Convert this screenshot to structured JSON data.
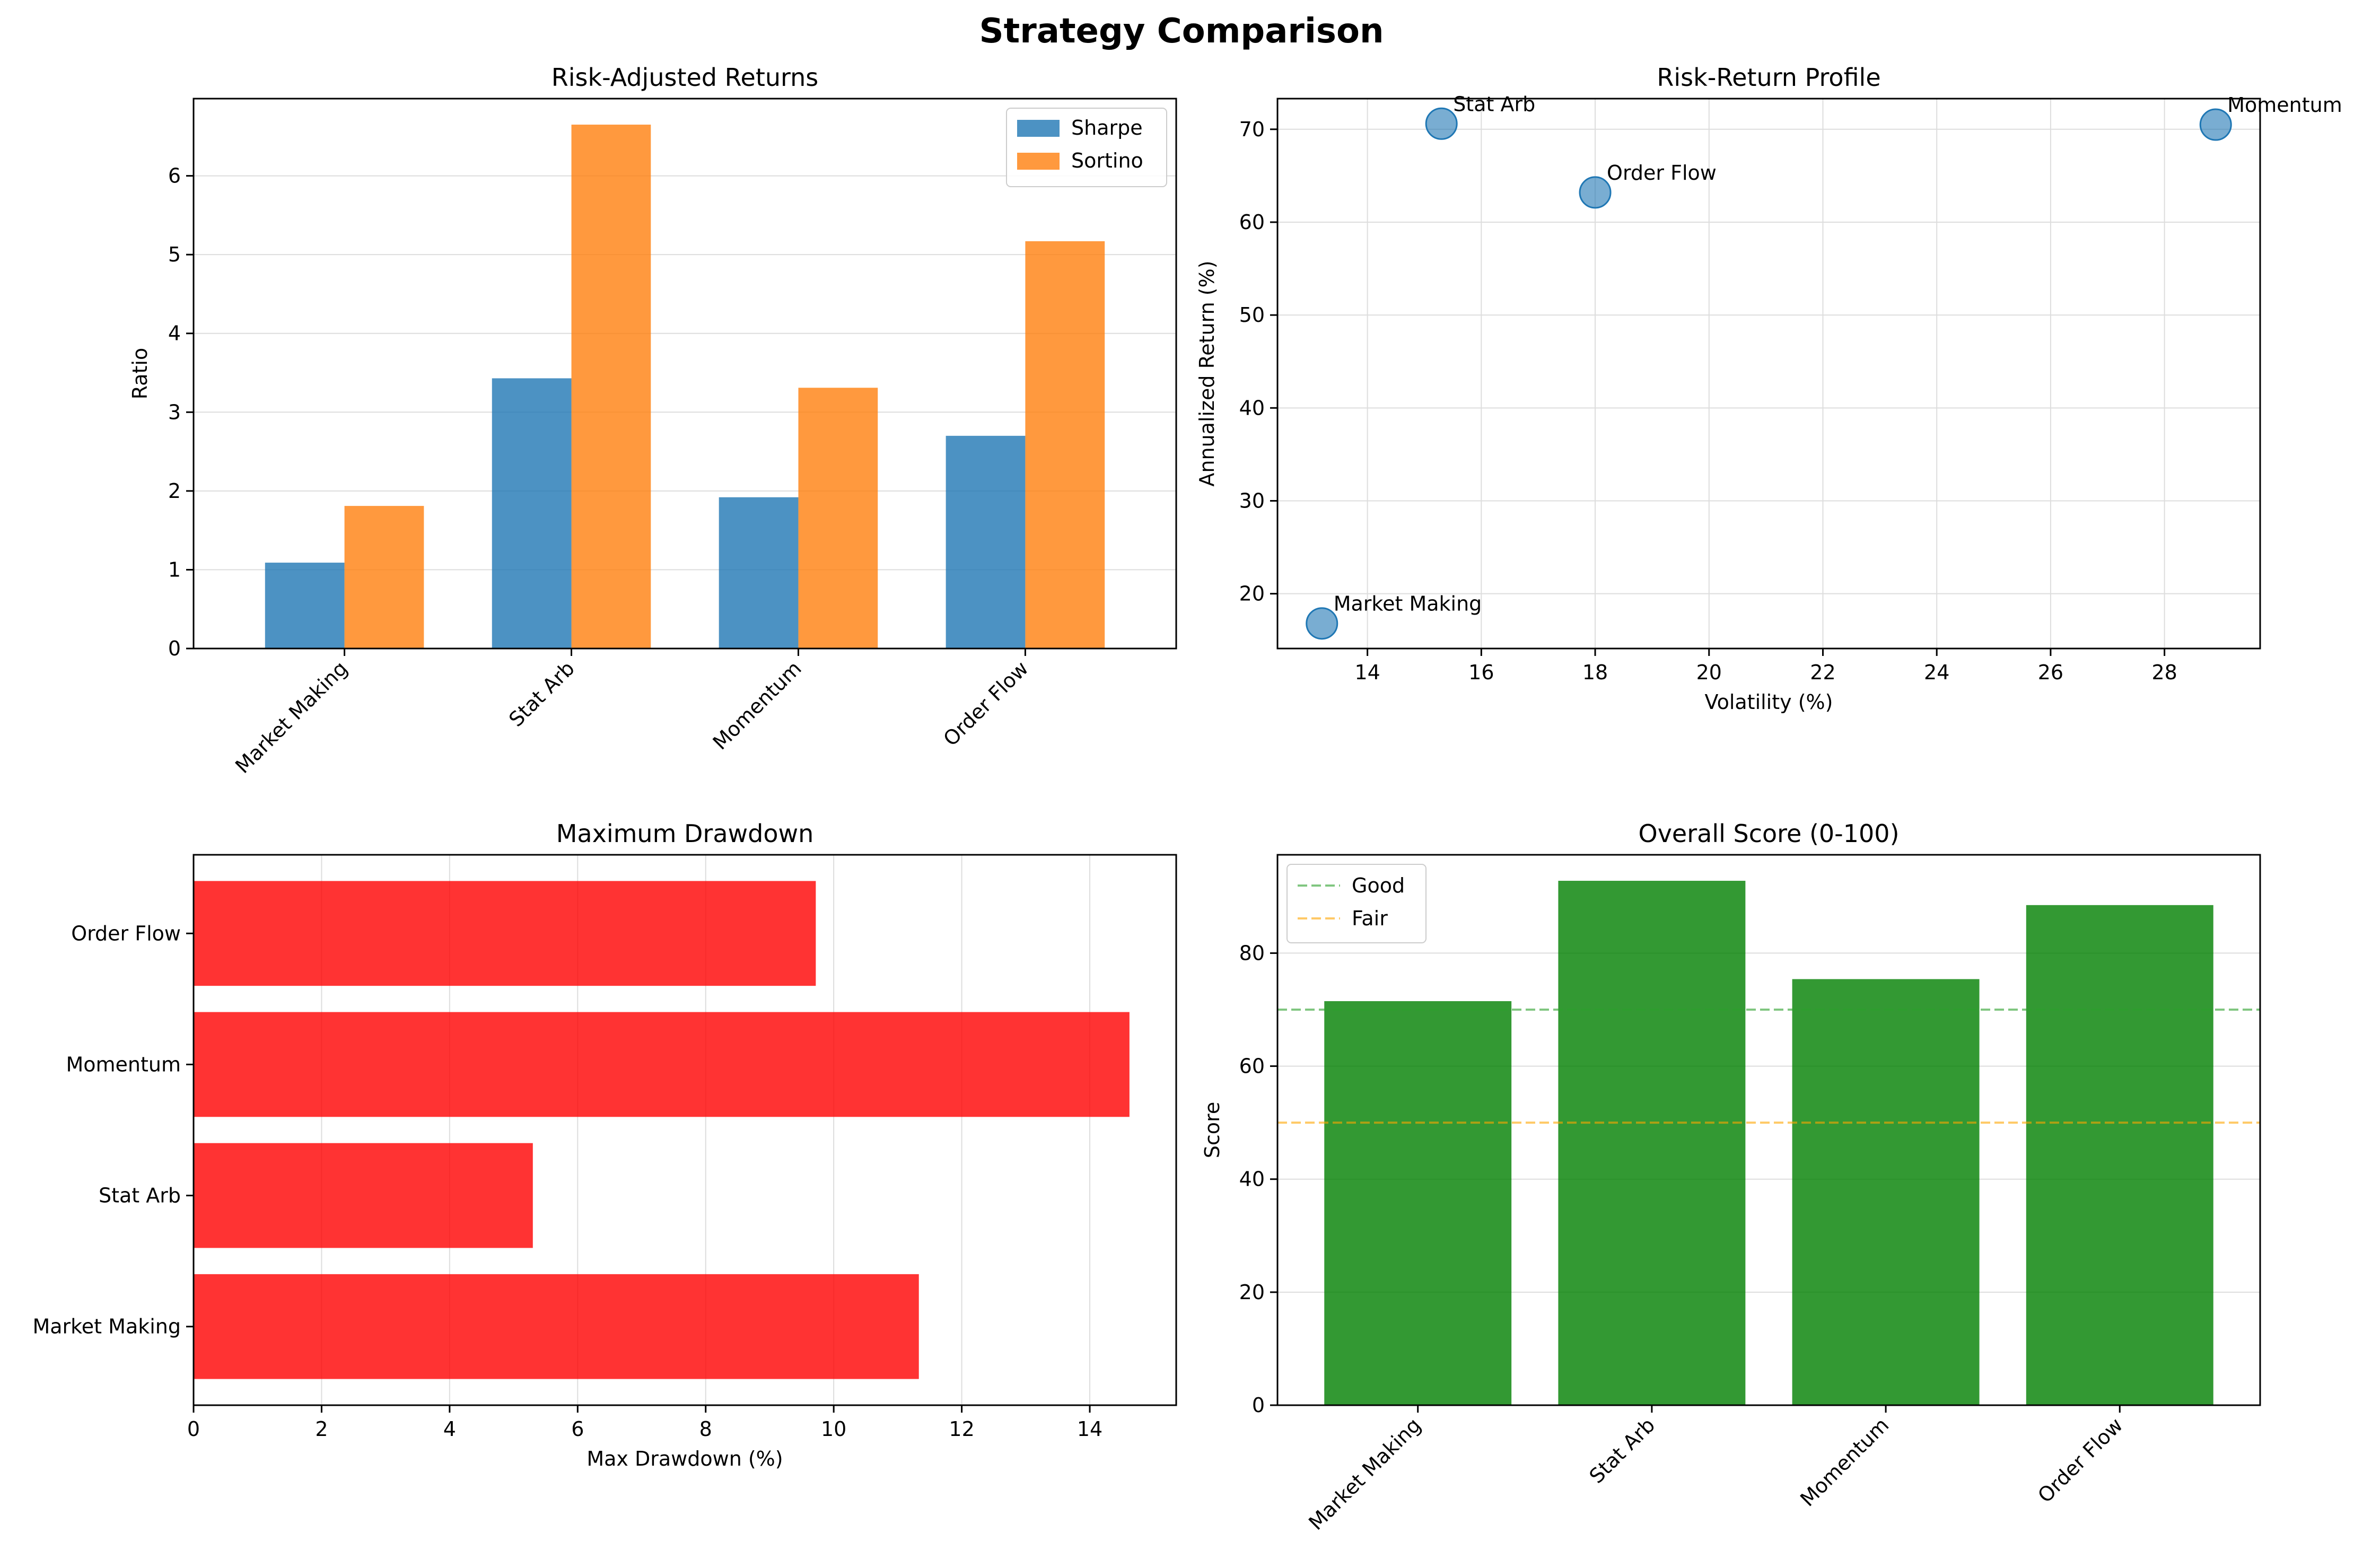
{
  "suptitle": "Strategy Comparison",
  "colors": {
    "sharpe": "#1f77b4",
    "sortino": "#ff7f0e",
    "scatter": "#1f77b4",
    "drawdown": "#ff0000",
    "score": "#008000",
    "good_line": "#2ca02c",
    "fair_line": "#ffa500",
    "grid": "#dddddd"
  },
  "chart_data": [
    {
      "id": "risk_adjusted",
      "type": "bar",
      "title": "Risk-Adjusted Returns",
      "xlabel": "",
      "ylabel": "Ratio",
      "categories": [
        "Market Making",
        "Stat Arb",
        "Momentum",
        "Order Flow"
      ],
      "series": [
        {
          "name": "Sharpe",
          "values": [
            1.09,
            3.43,
            1.92,
            2.7
          ]
        },
        {
          "name": "Sortino",
          "values": [
            1.81,
            6.65,
            3.31,
            5.17
          ]
        }
      ],
      "ylim": [
        0,
        6.98
      ],
      "yticks": [
        0,
        1,
        2,
        3,
        4,
        5,
        6
      ],
      "legend": "top-right",
      "grid": "y"
    },
    {
      "id": "risk_return",
      "type": "scatter",
      "title": "Risk-Return Profile",
      "xlabel": "Volatility (%)",
      "ylabel": "Annualized Return (%)",
      "points": [
        {
          "label": "Market Making",
          "x": 13.2,
          "y": 16.8
        },
        {
          "label": "Stat Arb",
          "x": 15.3,
          "y": 70.6
        },
        {
          "label": "Order Flow",
          "x": 18.0,
          "y": 63.2
        },
        {
          "label": "Momentum",
          "x": 28.9,
          "y": 70.5
        }
      ],
      "xlim": [
        12.42,
        29.68
      ],
      "ylim": [
        14.1,
        73.3
      ],
      "xticks": [
        14,
        16,
        18,
        20,
        22,
        24,
        26,
        28
      ],
      "yticks": [
        20,
        30,
        40,
        50,
        60,
        70
      ],
      "grid": "both"
    },
    {
      "id": "drawdown",
      "type": "bar",
      "orientation": "horizontal",
      "title": "Maximum Drawdown",
      "xlabel": "Max Drawdown (%)",
      "ylabel": "",
      "categories": [
        "Market Making",
        "Stat Arb",
        "Momentum",
        "Order Flow"
      ],
      "values": [
        11.33,
        5.3,
        14.62,
        9.72
      ],
      "xlim": [
        0,
        15.35
      ],
      "xticks": [
        0,
        2,
        4,
        6,
        8,
        10,
        12,
        14
      ],
      "grid": "x"
    },
    {
      "id": "overall_score",
      "type": "bar",
      "title": "Overall Score (0-100)",
      "xlabel": "",
      "ylabel": "Score",
      "categories": [
        "Market Making",
        "Stat Arb",
        "Momentum",
        "Order Flow"
      ],
      "values": [
        71.5,
        92.8,
        75.4,
        88.5
      ],
      "ylim": [
        0,
        97.4
      ],
      "yticks": [
        0,
        20,
        40,
        60,
        80
      ],
      "reference_lines": [
        {
          "name": "Good",
          "y": 70
        },
        {
          "name": "Fair",
          "y": 50
        }
      ],
      "legend": "top-left",
      "grid": "y"
    }
  ]
}
